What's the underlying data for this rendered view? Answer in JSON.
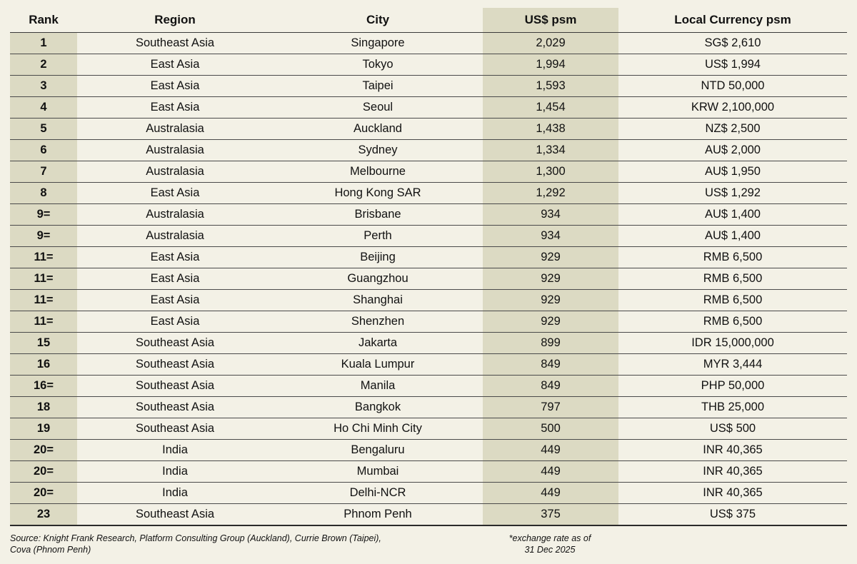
{
  "colors": {
    "background": "#f3f1e6",
    "shaded_column": "#dcdac3"
  },
  "table": {
    "headers": [
      "Rank",
      "Region",
      "City",
      "US$ psm",
      "Local Currency psm"
    ],
    "rows": [
      [
        "1",
        "Southeast Asia",
        "Singapore",
        "2,029",
        "SG$ 2,610"
      ],
      [
        "2",
        "East Asia",
        "Tokyo",
        "1,994",
        "US$ 1,994"
      ],
      [
        "3",
        "East Asia",
        "Taipei",
        "1,593",
        "NTD 50,000"
      ],
      [
        "4",
        "East Asia",
        "Seoul",
        "1,454",
        "KRW 2,100,000"
      ],
      [
        "5",
        "Australasia",
        "Auckland",
        "1,438",
        "NZ$ 2,500"
      ],
      [
        "6",
        "Australasia",
        "Sydney",
        "1,334",
        "AU$ 2,000"
      ],
      [
        "7",
        "Australasia",
        "Melbourne",
        "1,300",
        "AU$ 1,950"
      ],
      [
        "8",
        "East Asia",
        "Hong Kong SAR",
        "1,292",
        "US$ 1,292"
      ],
      [
        "9=",
        "Australasia",
        "Brisbane",
        "934",
        "AU$ 1,400"
      ],
      [
        "9=",
        "Australasia",
        "Perth",
        "934",
        "AU$ 1,400"
      ],
      [
        "11=",
        "East Asia",
        "Beijing",
        "929",
        "RMB 6,500"
      ],
      [
        "11=",
        "East Asia",
        "Guangzhou",
        "929",
        "RMB 6,500"
      ],
      [
        "11=",
        "East Asia",
        "Shanghai",
        "929",
        "RMB 6,500"
      ],
      [
        "11=",
        "East Asia",
        "Shenzhen",
        "929",
        "RMB 6,500"
      ],
      [
        "15",
        "Southeast Asia",
        "Jakarta",
        "899",
        "IDR 15,000,000"
      ],
      [
        "16",
        "Southeast Asia",
        "Kuala Lumpur",
        "849",
        "MYR 3,444"
      ],
      [
        "16=",
        "Southeast Asia",
        "Manila",
        "849",
        "PHP 50,000"
      ],
      [
        "18",
        "Southeast Asia",
        "Bangkok",
        "797",
        "THB 25,000"
      ],
      [
        "19",
        "Southeast Asia",
        "Ho Chi Minh City",
        "500",
        "US$ 500"
      ],
      [
        "20=",
        "India",
        "Bengaluru",
        "449",
        "INR 40,365"
      ],
      [
        "20=",
        "India",
        "Mumbai",
        "449",
        "INR 40,365"
      ],
      [
        "20=",
        "India",
        "Delhi-NCR",
        "449",
        "INR 40,365"
      ],
      [
        "23",
        "Southeast Asia",
        "Phnom Penh",
        "375",
        "US$ 375"
      ]
    ]
  },
  "footer": {
    "source_line1": "Source: Knight Frank Research, Platform Consulting Group (Auckland), Currie Brown (Taipei),",
    "source_line2": "Cova (Phnom Penh)",
    "note_line1": "*exchange rate as of",
    "note_line2": "31 Dec 2025"
  }
}
